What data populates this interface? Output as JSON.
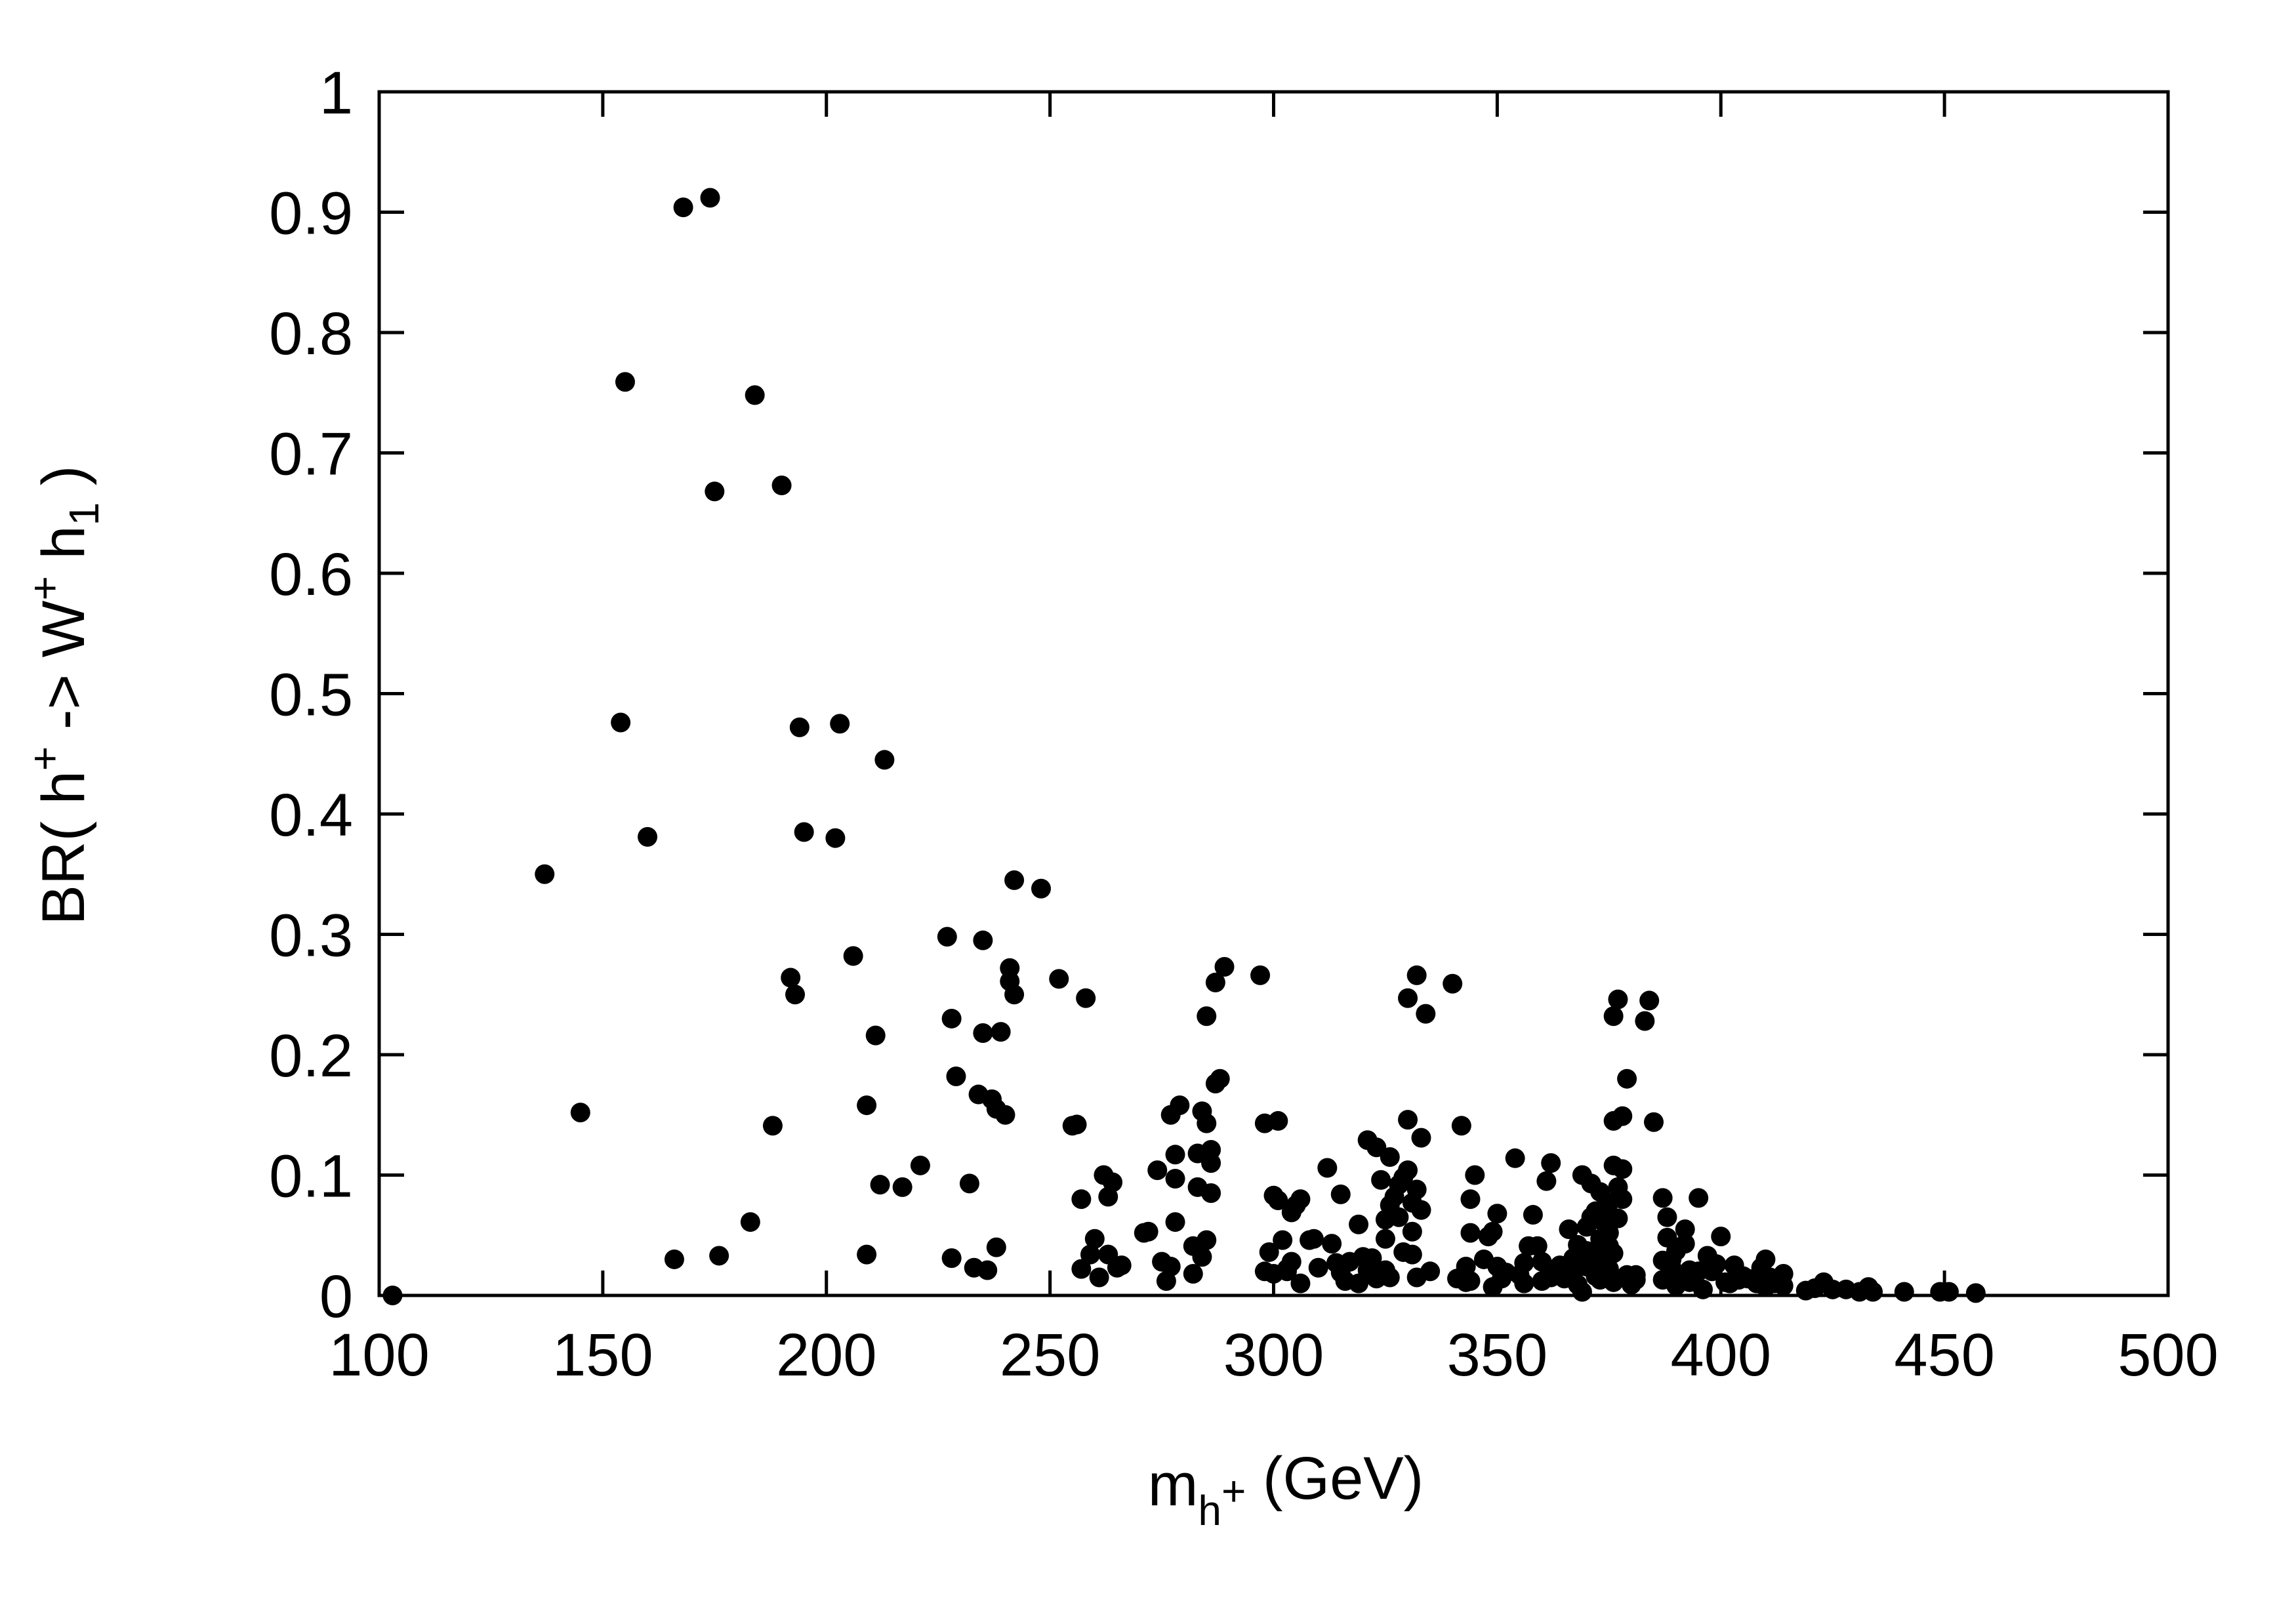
{
  "chart_data": {
    "type": "scatter",
    "xlabel": {
      "main": "m",
      "sub": "h",
      "subsup": "+",
      "unit": " (GeV)"
    },
    "ylabel": {
      "prefix": "BR( h",
      "sup1": "+",
      "mid": " -> W",
      "sup2": "+",
      "mid2": " h",
      "sub": "1",
      "suffix": " )"
    },
    "xlim": [
      100,
      500
    ],
    "ylim": [
      0,
      1
    ],
    "x_ticks": [
      100,
      150,
      200,
      250,
      300,
      350,
      400,
      450,
      500
    ],
    "x_tick_labels": [
      "100",
      "150",
      "200",
      "250",
      "300",
      "350",
      "400",
      "450",
      "500"
    ],
    "y_ticks": [
      0,
      0.1,
      0.2,
      0.3,
      0.4,
      0.5,
      0.6,
      0.7,
      0.8,
      0.9,
      1
    ],
    "y_tick_labels": [
      "0",
      "0.1",
      "0.2",
      "0.3",
      "0.4",
      "0.5",
      "0.6",
      "0.7",
      "0.8",
      "0.9",
      "1"
    ],
    "grid": false,
    "marker_color": "#000000",
    "points": [
      [
        103,
        0.0
      ],
      [
        137,
        0.35
      ],
      [
        145,
        0.152
      ],
      [
        154,
        0.476
      ],
      [
        155,
        0.759
      ],
      [
        160,
        0.381
      ],
      [
        166,
        0.03
      ],
      [
        168,
        0.904
      ],
      [
        174,
        0.912
      ],
      [
        175,
        0.668
      ],
      [
        176,
        0.033
      ],
      [
        183,
        0.061
      ],
      [
        184,
        0.748
      ],
      [
        188,
        0.141
      ],
      [
        190,
        0.673
      ],
      [
        192,
        0.264
      ],
      [
        193,
        0.25
      ],
      [
        194,
        0.472
      ],
      [
        195,
        0.385
      ],
      [
        202,
        0.38
      ],
      [
        203,
        0.475
      ],
      [
        206,
        0.282
      ],
      [
        209,
        0.158
      ],
      [
        209,
        0.034
      ],
      [
        211,
        0.216
      ],
      [
        212,
        0.092
      ],
      [
        213,
        0.445
      ],
      [
        217,
        0.09
      ],
      [
        221,
        0.108
      ],
      [
        227,
        0.298
      ],
      [
        228,
        0.031
      ],
      [
        228,
        0.23
      ],
      [
        229,
        0.182
      ],
      [
        232,
        0.093
      ],
      [
        233,
        0.023
      ],
      [
        234,
        0.167
      ],
      [
        235,
        0.218
      ],
      [
        235,
        0.295
      ],
      [
        236,
        0.021
      ],
      [
        237,
        0.163
      ],
      [
        238,
        0.04
      ],
      [
        238,
        0.155
      ],
      [
        239,
        0.219
      ],
      [
        240,
        0.15
      ],
      [
        241,
        0.272
      ],
      [
        241,
        0.261
      ],
      [
        242,
        0.25
      ],
      [
        242,
        0.345
      ],
      [
        248,
        0.338
      ],
      [
        252,
        0.263
      ],
      [
        255,
        0.141
      ],
      [
        256,
        0.142
      ],
      [
        257,
        0.08
      ],
      [
        257,
        0.022
      ],
      [
        258,
        0.247
      ],
      [
        259,
        0.034
      ],
      [
        260,
        0.047
      ],
      [
        261,
        0.015
      ],
      [
        262,
        0.1
      ],
      [
        263,
        0.034
      ],
      [
        263,
        0.082
      ],
      [
        264,
        0.094
      ],
      [
        265,
        0.023
      ],
      [
        266,
        0.025
      ],
      [
        271,
        0.052
      ],
      [
        272,
        0.053
      ],
      [
        274,
        0.104
      ],
      [
        275,
        0.028
      ],
      [
        276,
        0.012
      ],
      [
        277,
        0.15
      ],
      [
        277,
        0.024
      ],
      [
        278,
        0.097
      ],
      [
        278,
        0.061
      ],
      [
        278,
        0.117
      ],
      [
        279,
        0.158
      ],
      [
        282,
        0.041
      ],
      [
        282,
        0.018
      ],
      [
        283,
        0.118
      ],
      [
        283,
        0.09
      ],
      [
        284,
        0.153
      ],
      [
        284,
        0.032
      ],
      [
        285,
        0.143
      ],
      [
        285,
        0.046
      ],
      [
        285,
        0.232
      ],
      [
        286,
        0.085
      ],
      [
        286,
        0.11
      ],
      [
        286,
        0.121
      ],
      [
        287,
        0.26
      ],
      [
        287,
        0.176
      ],
      [
        288,
        0.18
      ],
      [
        289,
        0.273
      ],
      [
        297,
        0.266
      ],
      [
        298,
        0.02
      ],
      [
        298,
        0.143
      ],
      [
        299,
        0.036
      ],
      [
        300,
        0.018
      ],
      [
        300,
        0.083
      ],
      [
        301,
        0.079
      ],
      [
        301,
        0.145
      ],
      [
        302,
        0.046
      ],
      [
        303,
        0.022
      ],
      [
        303,
        0.02
      ],
      [
        304,
        0.069
      ],
      [
        304,
        0.028
      ],
      [
        305,
        0.075
      ],
      [
        306,
        0.08
      ],
      [
        306,
        0.01
      ],
      [
        308,
        0.046
      ],
      [
        309,
        0.047
      ],
      [
        310,
        0.023
      ],
      [
        312,
        0.106
      ],
      [
        313,
        0.043
      ],
      [
        314,
        0.027
      ],
      [
        315,
        0.019
      ],
      [
        315,
        0.084
      ],
      [
        316,
        0.012
      ],
      [
        317,
        0.028
      ],
      [
        319,
        0.01
      ],
      [
        319,
        0.059
      ],
      [
        320,
        0.032
      ],
      [
        321,
        0.021
      ],
      [
        321,
        0.129
      ],
      [
        322,
        0.031
      ],
      [
        323,
        0.014
      ],
      [
        323,
        0.123
      ],
      [
        324,
        0.096
      ],
      [
        325,
        0.063
      ],
      [
        325,
        0.047
      ],
      [
        325,
        0.021
      ],
      [
        326,
        0.015
      ],
      [
        326,
        0.075
      ],
      [
        326,
        0.115
      ],
      [
        327,
        0.082
      ],
      [
        328,
        0.092
      ],
      [
        328,
        0.065
      ],
      [
        329,
        0.036
      ],
      [
        329,
        0.098
      ],
      [
        330,
        0.146
      ],
      [
        330,
        0.104
      ],
      [
        330,
        0.247
      ],
      [
        331,
        0.034
      ],
      [
        331,
        0.053
      ],
      [
        331,
        0.077
      ],
      [
        332,
        0.015
      ],
      [
        332,
        0.088
      ],
      [
        332,
        0.266
      ],
      [
        333,
        0.071
      ],
      [
        333,
        0.131
      ],
      [
        334,
        0.234
      ],
      [
        335,
        0.02
      ],
      [
        340,
        0.259
      ],
      [
        341,
        0.014
      ],
      [
        342,
        0.141
      ],
      [
        343,
        0.011
      ],
      [
        343,
        0.024
      ],
      [
        344,
        0.012
      ],
      [
        344,
        0.08
      ],
      [
        344,
        0.052
      ],
      [
        345,
        0.1
      ],
      [
        347,
        0.03
      ],
      [
        348,
        0.049
      ],
      [
        349,
        0.053
      ],
      [
        349,
        0.007
      ],
      [
        350,
        0.024
      ],
      [
        350,
        0.068
      ],
      [
        351,
        0.014
      ],
      [
        352,
        0.019
      ],
      [
        354,
        0.114
      ],
      [
        355,
        0.017
      ],
      [
        356,
        0.01
      ],
      [
        356,
        0.027
      ],
      [
        357,
        0.041
      ],
      [
        358,
        0.067
      ],
      [
        359,
        0.041
      ],
      [
        360,
        0.028
      ],
      [
        360,
        0.012
      ],
      [
        361,
        0.095
      ],
      [
        362,
        0.015
      ],
      [
        362,
        0.11
      ],
      [
        363,
        0.02
      ],
      [
        364,
        0.025
      ],
      [
        365,
        0.014
      ],
      [
        366,
        0.055
      ],
      [
        367,
        0.019
      ],
      [
        367,
        0.031
      ],
      [
        368,
        0.042
      ],
      [
        368,
        0.009
      ],
      [
        369,
        0.003
      ],
      [
        369,
        0.1
      ],
      [
        370,
        0.024
      ],
      [
        370,
        0.057
      ],
      [
        370,
        0.037
      ],
      [
        371,
        0.065
      ],
      [
        371,
        0.093
      ],
      [
        372,
        0.016
      ],
      [
        372,
        0.032
      ],
      [
        372,
        0.07
      ],
      [
        373,
        0.047
      ],
      [
        373,
        0.013
      ],
      [
        373,
        0.086
      ],
      [
        374,
        0.06
      ],
      [
        374,
        0.029
      ],
      [
        374,
        0.073
      ],
      [
        375,
        0.041
      ],
      [
        375,
        0.022
      ],
      [
        375,
        0.052
      ],
      [
        375,
        0.077
      ],
      [
        376,
        0.145
      ],
      [
        376,
        0.011
      ],
      [
        376,
        0.035
      ],
      [
        376,
        0.108
      ],
      [
        376,
        0.232
      ],
      [
        377,
        0.064
      ],
      [
        377,
        0.09
      ],
      [
        377,
        0.246
      ],
      [
        378,
        0.105
      ],
      [
        378,
        0.08
      ],
      [
        378,
        0.149
      ],
      [
        379,
        0.18
      ],
      [
        379,
        0.017
      ],
      [
        380,
        0.009
      ],
      [
        381,
        0.017
      ],
      [
        381,
        0.013
      ],
      [
        383,
        0.228
      ],
      [
        384,
        0.245
      ],
      [
        385,
        0.144
      ],
      [
        387,
        0.013
      ],
      [
        387,
        0.081
      ],
      [
        387,
        0.029
      ],
      [
        388,
        0.065
      ],
      [
        388,
        0.048
      ],
      [
        389,
        0.023
      ],
      [
        389,
        0.03
      ],
      [
        390,
        0.008
      ],
      [
        390,
        0.037
      ],
      [
        391,
        0.016
      ],
      [
        392,
        0.043
      ],
      [
        392,
        0.055
      ],
      [
        393,
        0.021
      ],
      [
        393,
        0.011
      ],
      [
        394,
        0.012
      ],
      [
        395,
        0.081
      ],
      [
        395,
        0.02
      ],
      [
        396,
        0.005
      ],
      [
        397,
        0.033
      ],
      [
        398,
        0.02
      ],
      [
        399,
        0.026
      ],
      [
        400,
        0.049
      ],
      [
        401,
        0.011
      ],
      [
        402,
        0.01
      ],
      [
        403,
        0.025
      ],
      [
        404,
        0.013
      ],
      [
        405,
        0.016
      ],
      [
        406,
        0.014
      ],
      [
        408,
        0.01
      ],
      [
        409,
        0.023
      ],
      [
        410,
        0.03
      ],
      [
        410,
        0.007
      ],
      [
        411,
        0.015
      ],
      [
        412,
        0.01
      ],
      [
        414,
        0.018
      ],
      [
        414,
        0.008
      ],
      [
        419,
        0.004
      ],
      [
        421,
        0.006
      ],
      [
        423,
        0.011
      ],
      [
        425,
        0.005
      ],
      [
        428,
        0.005
      ],
      [
        431,
        0.003
      ],
      [
        433,
        0.007
      ],
      [
        434,
        0.003
      ],
      [
        441,
        0.003
      ],
      [
        449,
        0.003
      ],
      [
        451,
        0.003
      ],
      [
        457,
        0.002
      ]
    ]
  }
}
